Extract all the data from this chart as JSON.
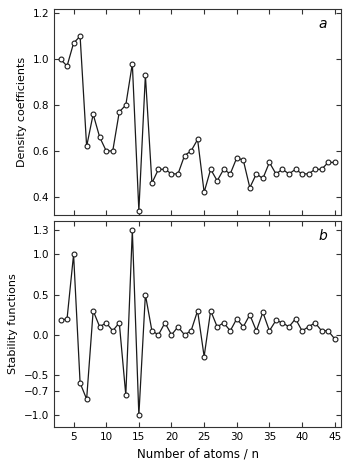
{
  "panel_a": {
    "x": [
      3,
      4,
      5,
      6,
      7,
      8,
      9,
      10,
      11,
      12,
      13,
      14,
      15,
      16,
      17,
      18,
      19,
      20,
      21,
      22,
      23,
      24,
      25,
      26,
      27,
      28,
      29,
      30,
      31,
      32,
      33,
      34,
      35,
      36,
      37,
      38,
      39,
      40,
      41,
      42,
      43,
      44,
      45
    ],
    "y": [
      1.0,
      0.97,
      1.07,
      1.1,
      0.62,
      0.76,
      0.66,
      0.6,
      0.6,
      0.77,
      0.8,
      0.98,
      0.34,
      0.93,
      0.46,
      0.52,
      0.52,
      0.5,
      0.5,
      0.58,
      0.6,
      0.65,
      0.42,
      0.52,
      0.47,
      0.52,
      0.5,
      0.57,
      0.56,
      0.44,
      0.5,
      0.48,
      0.55,
      0.5,
      0.52,
      0.5,
      0.52,
      0.5,
      0.5,
      0.52,
      0.52,
      0.55,
      0.55
    ],
    "ylabel": "Density coefficients",
    "ylim": [
      0.32,
      1.22
    ],
    "yticks": [
      0.4,
      0.6,
      0.8,
      1.0,
      1.2
    ],
    "label": "a"
  },
  "panel_b": {
    "x": [
      3,
      4,
      5,
      6,
      7,
      8,
      9,
      10,
      11,
      12,
      13,
      14,
      15,
      16,
      17,
      18,
      19,
      20,
      21,
      22,
      23,
      24,
      25,
      26,
      27,
      28,
      29,
      30,
      31,
      32,
      33,
      34,
      35,
      36,
      37,
      38,
      39,
      40,
      41,
      42,
      43,
      44,
      45
    ],
    "y": [
      0.18,
      0.2,
      1.0,
      -0.6,
      -0.8,
      0.3,
      0.1,
      0.15,
      0.05,
      0.15,
      -0.75,
      1.3,
      -1.0,
      0.5,
      0.05,
      0.0,
      0.15,
      0.0,
      0.1,
      0.0,
      0.05,
      0.3,
      -0.27,
      0.3,
      0.1,
      0.15,
      0.05,
      0.2,
      0.1,
      0.25,
      0.05,
      0.28,
      0.05,
      0.18,
      0.15,
      0.1,
      0.2,
      0.05,
      0.1,
      0.15,
      0.05,
      0.05,
      -0.05
    ],
    "ylabel": "Stability functions",
    "ylim": [
      -1.15,
      1.42
    ],
    "yticks": [
      -1.0,
      -0.7,
      -0.5,
      0.0,
      0.5,
      1.0,
      1.3
    ],
    "label": "b"
  },
  "xlabel": "Number of atoms / n",
  "xlim": [
    2,
    46
  ],
  "xticks": [
    5,
    10,
    15,
    20,
    25,
    30,
    35,
    40,
    45
  ],
  "line_color": "#1a1a1a",
  "marker": "o",
  "markersize": 3.5,
  "linewidth": 0.9,
  "bg_color": "#ffffff"
}
